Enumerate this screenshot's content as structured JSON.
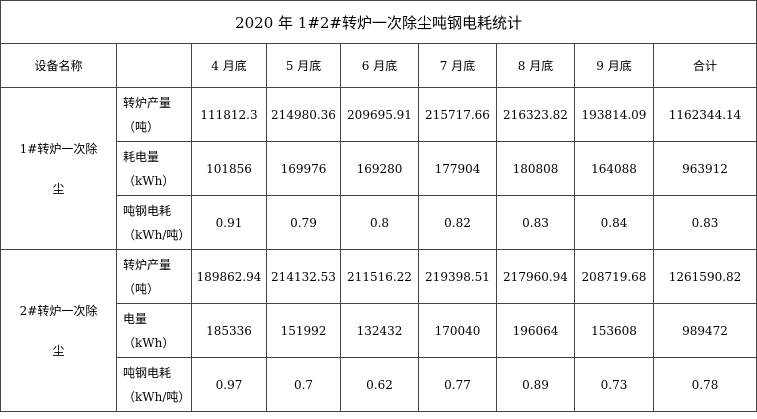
{
  "title": "2020 年 1#2#转炉一次除尘吨钢电耗统计",
  "header": {
    "name": "设备名称",
    "columns": [
      "4 月底",
      "5 月底",
      "6 月底",
      "7 月底",
      "8 月底",
      "9 月底",
      "合计"
    ]
  },
  "groups": [
    {
      "name": "1#转炉一次除尘",
      "rows": [
        {
          "label": "转炉产量",
          "unit": "（吨）",
          "values": [
            111812.3,
            214980.36,
            209695.91,
            215717.66,
            216323.82,
            193814.09,
            1162344.14
          ]
        },
        {
          "label": "耗电量",
          "unit": "（kWh）",
          "values": [
            101856,
            169976,
            169280,
            177904,
            180808,
            164088,
            963912
          ]
        },
        {
          "label": "吨钢电耗",
          "unit": "（kWh/吨）",
          "values": [
            0.91,
            0.79,
            0.8,
            0.82,
            0.83,
            0.84,
            0.83
          ]
        }
      ]
    },
    {
      "name": "2#转炉一次除尘",
      "rows": [
        {
          "label": "转炉产量",
          "unit": "（吨）",
          "values": [
            189862.94,
            214132.53,
            211516.22,
            219398.51,
            217960.94,
            208719.68,
            1261590.82
          ]
        },
        {
          "label": "电量",
          "unit": "（kWh）",
          "values": [
            185336,
            151992,
            132432,
            170040,
            196064,
            153608,
            989472
          ]
        },
        {
          "label": "吨钢电耗",
          "unit": "（kWh/吨）",
          "values": [
            0.97,
            0.7,
            0.62,
            0.77,
            0.89,
            0.73,
            0.78
          ]
        }
      ]
    }
  ]
}
